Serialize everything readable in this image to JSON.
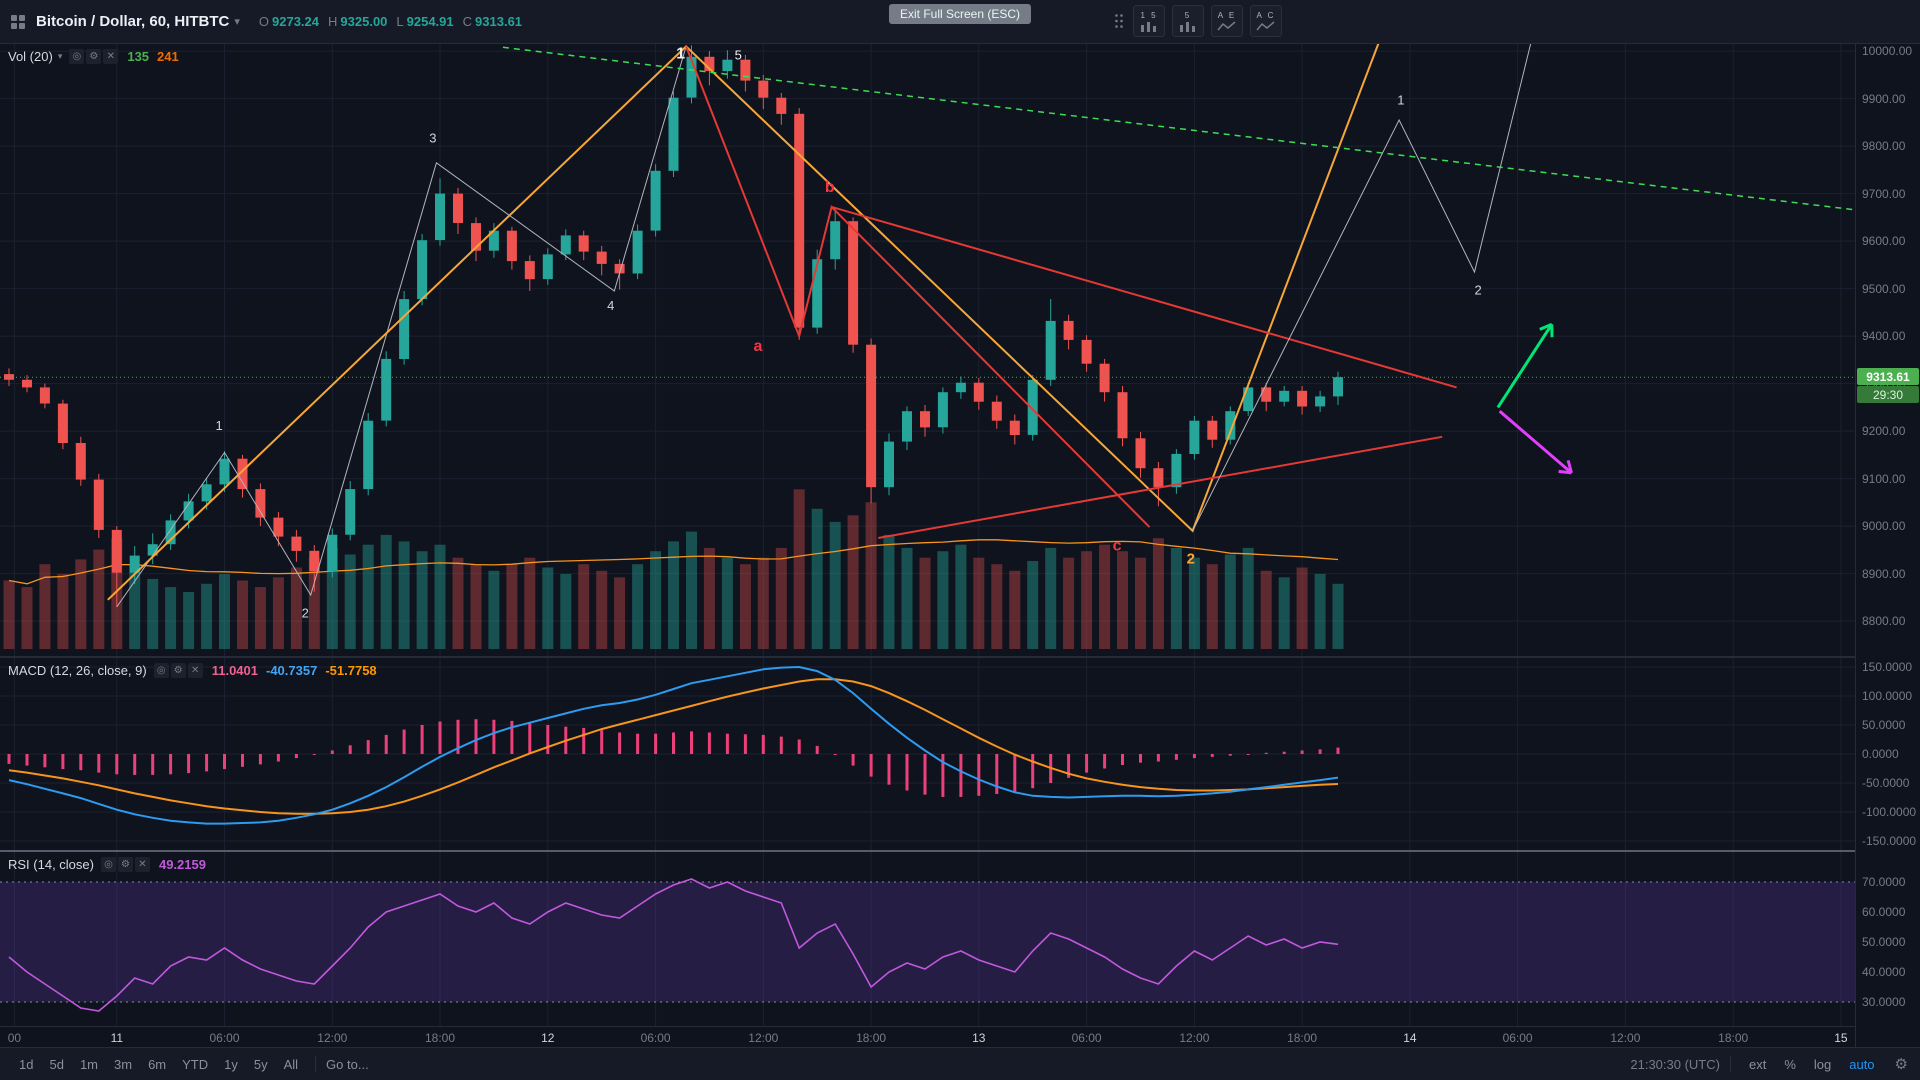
{
  "header": {
    "symbol_title": "Bitcoin / Dollar, 60, HITBTC",
    "ohlc": [
      {
        "label": "O",
        "value": "9273.24",
        "color": "#26a69a"
      },
      {
        "label": "H",
        "value": "9325.00",
        "color": "#26a69a"
      },
      {
        "label": "L",
        "value": "9254.91",
        "color": "#26a69a"
      },
      {
        "label": "C",
        "value": "9313.61",
        "color": "#26a69a"
      }
    ],
    "tooltip": "Exit Full Screen (ESC)",
    "layout_buttons": [
      {
        "label": "1 5"
      },
      {
        "label": "5"
      },
      {
        "label": "A E"
      },
      {
        "label": "A C"
      }
    ]
  },
  "legend_icons": [
    {
      "name": "eye-icon",
      "glyph": "◎"
    },
    {
      "name": "settings-icon",
      "glyph": "⚙"
    },
    {
      "name": "close-icon",
      "glyph": "✕"
    }
  ],
  "volume_legend": {
    "title": "Vol (20)",
    "values": [
      {
        "text": "135",
        "color": "#4caf50"
      },
      {
        "text": "241",
        "color": "#ef6c00"
      }
    ]
  },
  "macd_legend": {
    "title": "MACD (12, 26, close, 9)",
    "values": [
      {
        "text": "11.0401",
        "color": "#f06292"
      },
      {
        "text": "-40.7357",
        "color": "#42a5f5"
      },
      {
        "text": "-51.7758",
        "color": "#ff9800"
      }
    ]
  },
  "rsi_legend": {
    "title": "RSI (14, close)",
    "values": [
      {
        "text": "49.2159",
        "color": "#c258dd"
      }
    ]
  },
  "price_axis": {
    "labels": [
      "10000.00",
      "9900.00",
      "9800.00",
      "9700.00",
      "9600.00",
      "9500.00",
      "9400.00",
      "9300.00",
      "9200.00",
      "9100.00",
      "9000.00",
      "8900.00",
      "8800.00"
    ],
    "last_price": "9313.61",
    "countdown": "29:30",
    "badge_color": "#4caf50"
  },
  "macd_axis": [
    "150.0000",
    "100.0000",
    "50.0000",
    "0.0000",
    "-50.0000",
    "-100.0000",
    "-150.0000"
  ],
  "rsi_axis": [
    "70.0000",
    "60.0000",
    "50.0000",
    "40.0000",
    "30.0000"
  ],
  "time_axis": [
    {
      "label": "00",
      "i": 0.3,
      "major": false
    },
    {
      "label": "11",
      "i": 6,
      "major": true
    },
    {
      "label": "06:00",
      "i": 12,
      "major": false
    },
    {
      "label": "12:00",
      "i": 18,
      "major": false
    },
    {
      "label": "18:00",
      "i": 24,
      "major": false
    },
    {
      "label": "12",
      "i": 30,
      "major": true
    },
    {
      "label": "06:00",
      "i": 36,
      "major": false
    },
    {
      "label": "12:00",
      "i": 42,
      "major": false
    },
    {
      "label": "18:00",
      "i": 48,
      "major": false
    },
    {
      "label": "13",
      "i": 54,
      "major": true
    },
    {
      "label": "06:00",
      "i": 60,
      "major": false
    },
    {
      "label": "12:00",
      "i": 66,
      "major": false
    },
    {
      "label": "18:00",
      "i": 72,
      "major": false
    },
    {
      "label": "14",
      "i": 78,
      "major": true
    },
    {
      "label": "06:00",
      "i": 84,
      "major": false
    },
    {
      "label": "12:00",
      "i": 90,
      "major": false
    },
    {
      "label": "18:00",
      "i": 96,
      "major": false
    },
    {
      "label": "15",
      "i": 102,
      "major": true
    }
  ],
  "footer": {
    "ranges": [
      "1d",
      "5d",
      "1m",
      "3m",
      "6m",
      "YTD",
      "1y",
      "5y",
      "All"
    ],
    "goto": "Go to...",
    "clock": "21:30:30 (UTC)",
    "buttons": [
      {
        "text": "ext",
        "color": "#8b8f9c"
      },
      {
        "text": "%",
        "color": "#8b8f9c"
      },
      {
        "text": "log",
        "color": "#8b8f9c"
      },
      {
        "text": "auto",
        "color": "#2196f3"
      }
    ]
  },
  "chart_data": {
    "type": "candlestick",
    "title": "Bitcoin / Dollar, 60, HITBTC",
    "interval": "60",
    "ylim": [
      8722,
      10015
    ],
    "up_color": "#26a69a",
    "down_color": "#ef5350",
    "last_price": 9313.61,
    "candles": [
      [
        9320,
        9332,
        9295,
        9308
      ],
      [
        9308,
        9318,
        9282,
        9292
      ],
      [
        9292,
        9300,
        9248,
        9258
      ],
      [
        9258,
        9266,
        9162,
        9175
      ],
      [
        9175,
        9188,
        9085,
        9098
      ],
      [
        9098,
        9110,
        8975,
        8992
      ],
      [
        8992,
        9000,
        8830,
        8902
      ],
      [
        8902,
        8958,
        8878,
        8938
      ],
      [
        8938,
        8985,
        8920,
        8962
      ],
      [
        8962,
        9025,
        8950,
        9012
      ],
      [
        9012,
        9068,
        8995,
        9052
      ],
      [
        9052,
        9102,
        9035,
        9088
      ],
      [
        9088,
        9158,
        9072,
        9142
      ],
      [
        9142,
        9150,
        9060,
        9078
      ],
      [
        9078,
        9090,
        9000,
        9018
      ],
      [
        9018,
        9030,
        8958,
        8978
      ],
      [
        8978,
        8992,
        8925,
        8948
      ],
      [
        8948,
        8960,
        8862,
        8905
      ],
      [
        8905,
        8995,
        8892,
        8982
      ],
      [
        8982,
        9095,
        8970,
        9078
      ],
      [
        9078,
        9238,
        9065,
        9222
      ],
      [
        9222,
        9368,
        9210,
        9352
      ],
      [
        9352,
        9495,
        9340,
        9478
      ],
      [
        9478,
        9615,
        9465,
        9602
      ],
      [
        9602,
        9732,
        9590,
        9700
      ],
      [
        9700,
        9712,
        9615,
        9638
      ],
      [
        9638,
        9650,
        9558,
        9580
      ],
      [
        9580,
        9638,
        9565,
        9622
      ],
      [
        9622,
        9630,
        9540,
        9558
      ],
      [
        9558,
        9570,
        9495,
        9520
      ],
      [
        9520,
        9585,
        9508,
        9572
      ],
      [
        9572,
        9625,
        9560,
        9612
      ],
      [
        9612,
        9622,
        9560,
        9578
      ],
      [
        9578,
        9590,
        9528,
        9552
      ],
      [
        9552,
        9562,
        9498,
        9532
      ],
      [
        9532,
        9635,
        9520,
        9622
      ],
      [
        9622,
        9762,
        9610,
        9748
      ],
      [
        9748,
        9915,
        9735,
        9902
      ],
      [
        9902,
        10012,
        9890,
        9988
      ],
      [
        9988,
        10000,
        9928,
        9958
      ],
      [
        9958,
        10002,
        9942,
        9982
      ],
      [
        9982,
        9992,
        9915,
        9938
      ],
      [
        9938,
        9950,
        9878,
        9902
      ],
      [
        9902,
        9912,
        9845,
        9868
      ],
      [
        9868,
        9880,
        9392,
        9418
      ],
      [
        9418,
        9582,
        9405,
        9562
      ],
      [
        9562,
        9668,
        9540,
        9642
      ],
      [
        9642,
        9650,
        9365,
        9382
      ],
      [
        9382,
        9395,
        9048,
        9082
      ],
      [
        9082,
        9195,
        9065,
        9178
      ],
      [
        9178,
        9252,
        9160,
        9242
      ],
      [
        9242,
        9255,
        9188,
        9208
      ],
      [
        9208,
        9292,
        9195,
        9282
      ],
      [
        9282,
        9315,
        9268,
        9302
      ],
      [
        9302,
        9312,
        9245,
        9262
      ],
      [
        9262,
        9275,
        9205,
        9222
      ],
      [
        9222,
        9235,
        9172,
        9192
      ],
      [
        9192,
        9318,
        9180,
        9308
      ],
      [
        9308,
        9478,
        9295,
        9432
      ],
      [
        9432,
        9445,
        9372,
        9392
      ],
      [
        9392,
        9402,
        9325,
        9342
      ],
      [
        9342,
        9352,
        9262,
        9282
      ],
      [
        9282,
        9295,
        9168,
        9185
      ],
      [
        9185,
        9198,
        9102,
        9122
      ],
      [
        9122,
        9135,
        9042,
        9082
      ],
      [
        9082,
        9162,
        9068,
        9152
      ],
      [
        9152,
        9232,
        9140,
        9222
      ],
      [
        9222,
        9232,
        9165,
        9182
      ],
      [
        9182,
        9252,
        9172,
        9242
      ],
      [
        9242,
        9302,
        9232,
        9292
      ],
      [
        9292,
        9302,
        9242,
        9262
      ],
      [
        9262,
        9295,
        9252,
        9285
      ],
      [
        9285,
        9295,
        9235,
        9252
      ],
      [
        9252,
        9285,
        9240,
        9273
      ],
      [
        9273.24,
        9325.0,
        9254.91,
        9313.61
      ]
    ],
    "volumes": [
      420,
      380,
      520,
      460,
      550,
      610,
      680,
      520,
      430,
      380,
      350,
      400,
      460,
      420,
      380,
      440,
      500,
      560,
      620,
      580,
      640,
      700,
      660,
      600,
      640,
      560,
      520,
      480,
      520,
      560,
      500,
      460,
      520,
      480,
      440,
      520,
      600,
      660,
      720,
      620,
      560,
      520,
      560,
      620,
      980,
      860,
      780,
      820,
      900,
      700,
      620,
      560,
      600,
      640,
      560,
      520,
      480,
      540,
      620,
      560,
      600,
      640,
      600,
      560,
      680,
      620,
      560,
      520,
      580,
      620,
      480,
      440,
      500,
      460,
      400
    ],
    "volume_ma_period": 20,
    "macd": {
      "histogram_color": "#ec407a",
      "macd_color": "#2d9bf0",
      "signal_color": "#f7941d",
      "macd": [
        -45,
        -52,
        -60,
        -68,
        -76,
        -86,
        -96,
        -104,
        -110,
        -115,
        -118,
        -120,
        -120,
        -119,
        -118,
        -115,
        -110,
        -104,
        -96,
        -85,
        -72,
        -57,
        -40,
        -22,
        -5,
        10,
        24,
        36,
        46,
        54,
        62,
        70,
        78,
        84,
        88,
        94,
        102,
        112,
        122,
        128,
        134,
        140,
        146,
        149,
        150,
        143,
        128,
        105,
        78,
        52,
        28,
        6,
        -14,
        -30,
        -44,
        -56,
        -66,
        -72,
        -74,
        -75,
        -74,
        -73,
        -72,
        -72,
        -73,
        -72,
        -70,
        -68,
        -65,
        -61,
        -57,
        -53,
        -49,
        -45,
        -40.74
      ],
      "signal": [
        -28,
        -32,
        -37,
        -42,
        -48,
        -54,
        -61,
        -68,
        -74,
        -80,
        -85,
        -90,
        -94,
        -97,
        -100,
        -102,
        -103,
        -103,
        -102,
        -100,
        -96,
        -90,
        -82,
        -72,
        -61,
        -49,
        -36,
        -23,
        -11,
        1,
        12,
        23,
        33,
        43,
        51,
        59,
        67,
        75,
        83,
        91,
        99,
        106,
        113,
        119,
        125,
        129,
        129,
        125,
        117,
        105,
        91,
        76,
        60,
        44,
        28,
        13,
        -1,
        -13,
        -24,
        -34,
        -42,
        -48,
        -53,
        -57,
        -60,
        -62,
        -63,
        -63,
        -62,
        -61,
        -59,
        -57,
        -55,
        -53,
        -51.78
      ]
    },
    "rsi": {
      "line_color": "#c258dd",
      "band": [
        30,
        70
      ],
      "band_color": "rgba(103,58,183,0.25)",
      "values": [
        45,
        40,
        36,
        32,
        28,
        27,
        32,
        38,
        36,
        42,
        45,
        44,
        48,
        44,
        41,
        39,
        37,
        36,
        42,
        48,
        55,
        60,
        62,
        64,
        66,
        62,
        60,
        63,
        58,
        56,
        60,
        63,
        61,
        59,
        58,
        62,
        66,
        69,
        71,
        68,
        70,
        67,
        65,
        63,
        48,
        53,
        56,
        46,
        35,
        40,
        43,
        41,
        45,
        47,
        44,
        42,
        40,
        47,
        53,
        51,
        48,
        45,
        41,
        38,
        36,
        42,
        47,
        44,
        48,
        52,
        49,
        51,
        48,
        50,
        49.22
      ]
    },
    "drawings": [
      {
        "type": "polyline",
        "color": "#b2b5be",
        "width": 1,
        "points": [
          [
            6,
            8830
          ],
          [
            12,
            9155
          ],
          [
            16.8,
            8855
          ],
          [
            23.8,
            9765
          ],
          [
            33.7,
            9495
          ],
          [
            37.7,
            10010
          ]
        ]
      },
      {
        "type": "polyline",
        "color": "#f7a738",
        "width": 2,
        "points": [
          [
            5.5,
            8845
          ],
          [
            37.7,
            10010
          ],
          [
            65.9,
            8990
          ],
          [
            77.5,
            10140
          ]
        ]
      },
      {
        "type": "polyline",
        "color": "#e53935",
        "width": 2,
        "points": [
          [
            37.7,
            10010
          ],
          [
            44,
            9400
          ],
          [
            45.8,
            9672
          ],
          [
            63.5,
            8998
          ]
        ]
      },
      {
        "type": "polyline",
        "color": "#e53935",
        "width": 2,
        "points": [
          [
            45.8,
            9672
          ],
          [
            80.6,
            9292
          ]
        ]
      },
      {
        "type": "polyline",
        "color": "#e53935",
        "width": 2,
        "points": [
          [
            48.4,
            8975
          ],
          [
            79.8,
            9188
          ]
        ]
      },
      {
        "type": "polyline",
        "color": "#b2b5be",
        "width": 1,
        "points": [
          [
            65.9,
            8990
          ],
          [
            77.4,
            9855
          ],
          [
            81.6,
            9535
          ],
          [
            85.6,
            10150
          ]
        ]
      },
      {
        "type": "polyline",
        "color": "#3ddc55",
        "width": 1.5,
        "dash": "6 5",
        "points": [
          [
            27.5,
            10008
          ],
          [
            103,
            9665
          ]
        ]
      },
      {
        "type": "arrow",
        "color": "#00e676",
        "width": 3,
        "points": [
          [
            82.9,
            9250
          ],
          [
            85.9,
            9425
          ]
        ]
      },
      {
        "type": "arrow",
        "color": "#e040fb",
        "width": 3,
        "points": [
          [
            83,
            9242
          ],
          [
            87,
            9112
          ]
        ]
      }
    ],
    "wave_labels": [
      {
        "text": "1",
        "color": "#d1d4dc",
        "size": 13,
        "i": 11.7,
        "p": 9210,
        "bold": false
      },
      {
        "text": "2",
        "color": "#d1d4dc",
        "size": 13,
        "i": 16.5,
        "p": 8815,
        "bold": false
      },
      {
        "text": "3",
        "color": "#d1d4dc",
        "size": 13,
        "i": 23.6,
        "p": 9815,
        "bold": false
      },
      {
        "text": "4",
        "color": "#d1d4dc",
        "size": 13,
        "i": 33.5,
        "p": 9462,
        "bold": false
      },
      {
        "text": "1",
        "color": "#eceff4",
        "size": 16,
        "i": 37.4,
        "p": 9993,
        "bold": true
      },
      {
        "text": "5",
        "color": "#eceff4",
        "size": 13,
        "i": 40.6,
        "p": 9990,
        "bold": false
      },
      {
        "text": "a",
        "color": "#f23645",
        "size": 16,
        "i": 41.7,
        "p": 9378,
        "bold": true
      },
      {
        "text": "b",
        "color": "#f23645",
        "size": 16,
        "i": 45.7,
        "p": 9712,
        "bold": true
      },
      {
        "text": "c",
        "color": "#f23645",
        "size": 16,
        "i": 61.7,
        "p": 8958,
        "bold": true
      },
      {
        "text": "2",
        "color": "#f7a738",
        "size": 15,
        "i": 65.8,
        "p": 8930,
        "bold": true
      },
      {
        "text": "1",
        "color": "#d1d4dc",
        "size": 13,
        "i": 77.5,
        "p": 9895,
        "bold": false
      },
      {
        "text": "2",
        "color": "#d1d4dc",
        "size": 13,
        "i": 81.8,
        "p": 9495,
        "bold": false
      }
    ]
  }
}
